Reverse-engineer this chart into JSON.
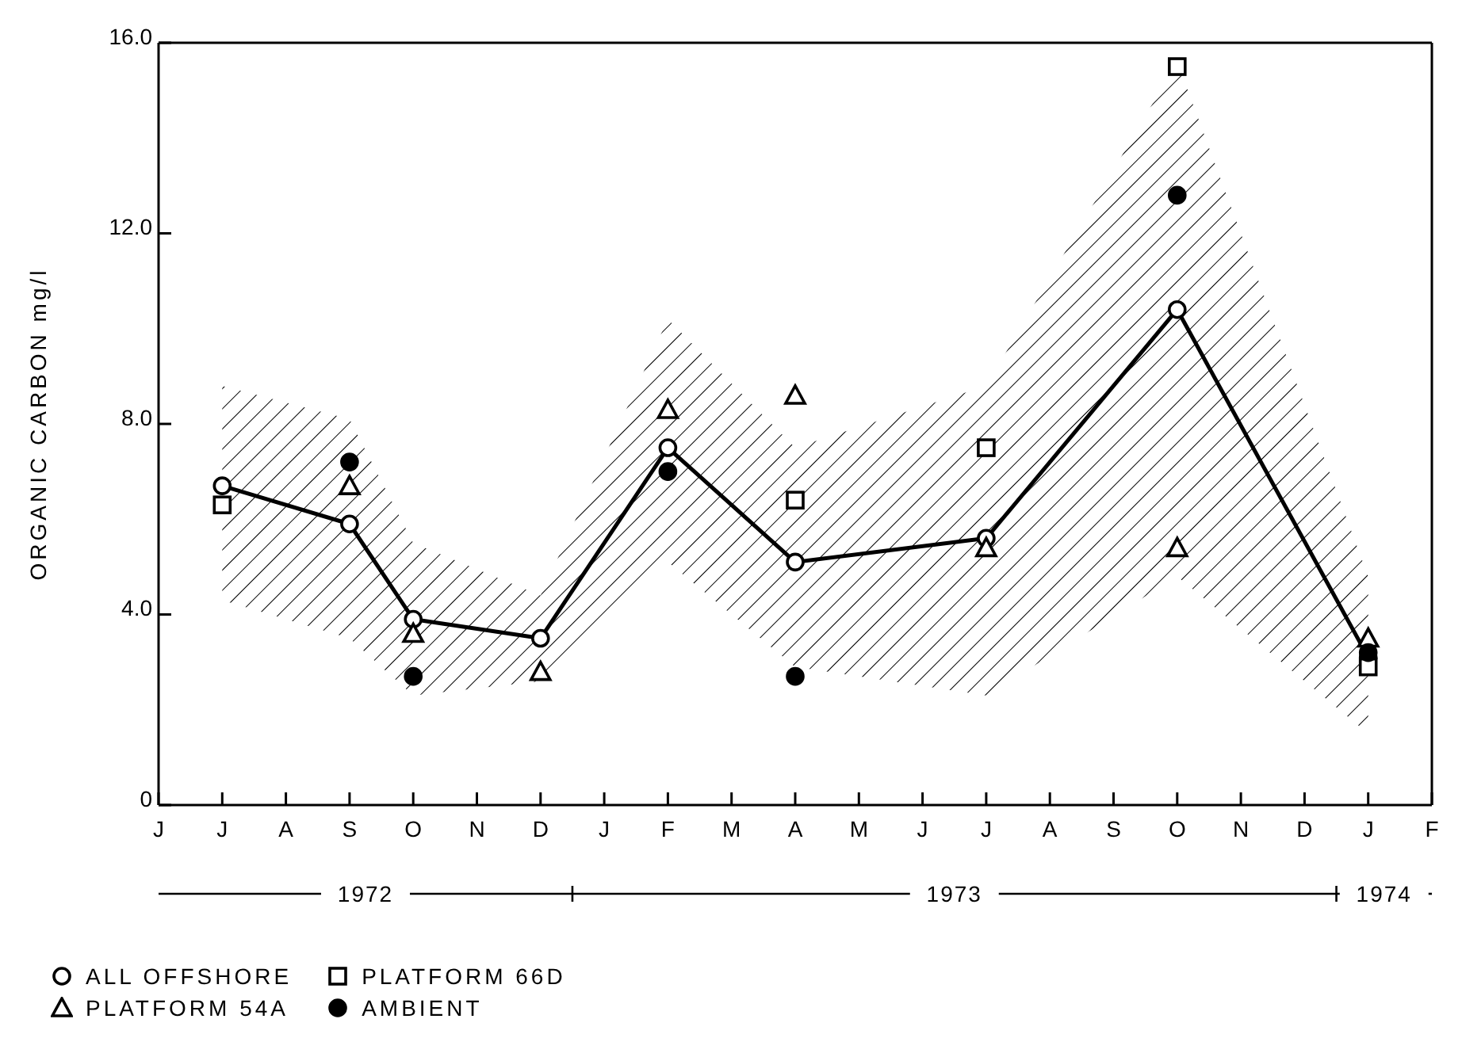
{
  "chart_data": {
    "type": "line",
    "ylabel": "ORGANIC CARBON mg/l",
    "categories": [
      "J",
      "J",
      "A",
      "S",
      "O",
      "N",
      "D",
      "J",
      "F",
      "M",
      "A",
      "M",
      "J",
      "J",
      "A",
      "S",
      "O",
      "N",
      "D",
      "J",
      "F"
    ],
    "ylim": [
      0,
      16
    ],
    "yticks": [
      0,
      {
        "value": 4,
        "label": "4.0"
      },
      {
        "value": 8,
        "label": "8.0"
      },
      {
        "value": 12,
        "label": "12.0"
      },
      {
        "value": 16,
        "label": "16.0"
      }
    ],
    "annotations": [
      "1972",
      "1973",
      "1974"
    ],
    "legend": "bottom left",
    "grid": false,
    "series": [
      {
        "name": "ALL OFFSHORE",
        "marker": "circle",
        "color": "#000000",
        "values": [
          null,
          6.7,
          null,
          5.9,
          3.9,
          null,
          3.5,
          null,
          7.5,
          null,
          5.1,
          null,
          null,
          5.6,
          null,
          null,
          10.4,
          null,
          null,
          3.1,
          null
        ],
        "lower": [
          null,
          4.3,
          null,
          3.5,
          2.3,
          null,
          2.6,
          null,
          5.1,
          null,
          2.9,
          null,
          null,
          2.3,
          null,
          null,
          4.8,
          null,
          null,
          1.5,
          null
        ],
        "upper": [
          null,
          8.8,
          null,
          8.1,
          5.5,
          null,
          4.4,
          null,
          10.2,
          null,
          7.5,
          null,
          null,
          8.8,
          null,
          null,
          15.6,
          null,
          null,
          4.8,
          null
        ]
      },
      {
        "name": "PLATFORM 54A",
        "type": "scatter",
        "marker": "triangle",
        "color": "#ffffff",
        "values": [
          null,
          null,
          null,
          6.7,
          3.6,
          null,
          2.8,
          null,
          8.3,
          null,
          8.6,
          null,
          null,
          5.4,
          null,
          null,
          5.4,
          null,
          null,
          3.5,
          null
        ]
      },
      {
        "name": "PLATFORM 66D",
        "type": "scatter",
        "marker": "square",
        "color": "#ffffff",
        "values": [
          null,
          6.3,
          null,
          null,
          null,
          null,
          null,
          null,
          null,
          null,
          6.4,
          null,
          null,
          7.5,
          null,
          null,
          15.5,
          null,
          null,
          2.9,
          null
        ]
      },
      {
        "name": "AMBIENT",
        "type": "scatter",
        "marker": "circle",
        "color": "#000000",
        "values": [
          null,
          null,
          null,
          7.2,
          2.7,
          null,
          null,
          null,
          7.0,
          null,
          2.7,
          null,
          null,
          null,
          null,
          null,
          12.8,
          null,
          null,
          3.2,
          null
        ]
      }
    ]
  }
}
